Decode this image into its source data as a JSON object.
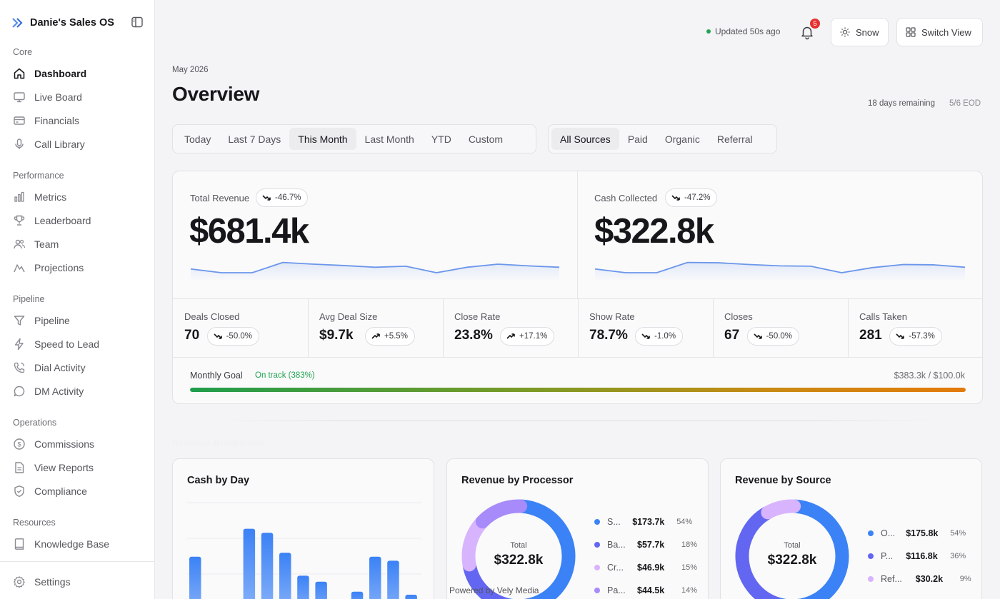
{
  "brand": {
    "name": "Danie's Sales OS",
    "logo_icon": "chevrons-right-icon",
    "collapse_icon": "sidebar-toggle-icon"
  },
  "sidebar": {
    "sections": [
      {
        "title": "Core",
        "items": [
          {
            "label": "Dashboard",
            "icon": "home-icon",
            "active": true
          },
          {
            "label": "Live Board",
            "icon": "monitor-icon"
          },
          {
            "label": "Financials",
            "icon": "credit-card-icon"
          },
          {
            "label": "Call Library",
            "icon": "microphone-icon"
          }
        ]
      },
      {
        "title": "Performance",
        "items": [
          {
            "label": "Metrics",
            "icon": "bar-chart-icon"
          },
          {
            "label": "Leaderboard",
            "icon": "trophy-icon"
          },
          {
            "label": "Team",
            "icon": "users-icon"
          },
          {
            "label": "Projections",
            "icon": "mountain-chart-icon"
          }
        ]
      },
      {
        "title": "Pipeline",
        "items": [
          {
            "label": "Pipeline",
            "icon": "funnel-icon"
          },
          {
            "label": "Speed to Lead",
            "icon": "lightning-icon"
          },
          {
            "label": "Dial Activity",
            "icon": "phone-icon"
          },
          {
            "label": "DM Activity",
            "icon": "chat-bubble-icon"
          }
        ]
      },
      {
        "title": "Operations",
        "items": [
          {
            "label": "Commissions",
            "icon": "dollar-circle-icon"
          },
          {
            "label": "View Reports",
            "icon": "document-icon"
          },
          {
            "label": "Compliance",
            "icon": "shield-check-icon"
          }
        ]
      },
      {
        "title": "Resources",
        "items": [
          {
            "label": "Knowledge Base",
            "icon": "book-icon"
          }
        ]
      }
    ],
    "settings": {
      "label": "Settings",
      "icon": "gear-icon"
    }
  },
  "topbar": {
    "status": "Updated 50s ago",
    "notifications": "5",
    "theme_label": "Snow",
    "switch_label": "Switch View"
  },
  "header": {
    "period": "May 2026",
    "title": "Overview",
    "remaining": "18 days remaining",
    "eod": "5/6 EOD"
  },
  "filters": {
    "ranges": [
      "Today",
      "Last 7 Days",
      "This Month",
      "Last Month",
      "YTD",
      "Custom"
    ],
    "active_range": "This Month",
    "sources": [
      "All Sources",
      "Paid",
      "Organic",
      "Referral"
    ],
    "active_source": "All Sources"
  },
  "kpis": {
    "revenue": {
      "label": "Total Revenue",
      "change": "-46.7%",
      "value": "$681.4k",
      "trend": [
        0.22,
        0.0,
        0.0,
        0.6,
        0.5,
        0.42,
        0.32,
        0.38,
        0.0,
        0.32,
        0.5,
        0.4,
        0.32
      ]
    },
    "cash": {
      "label": "Cash Collected",
      "change": "-47.2%",
      "value": "$322.8k",
      "trend": [
        0.22,
        0.0,
        0.0,
        0.6,
        0.58,
        0.48,
        0.4,
        0.38,
        0.0,
        0.3,
        0.48,
        0.46,
        0.32
      ]
    }
  },
  "stats": [
    {
      "label": "Deals Closed",
      "value": "70",
      "change": "-50.0%",
      "dir": "down"
    },
    {
      "label": "Avg Deal Size",
      "value": "$9.7k",
      "change": "+5.5%",
      "dir": "up"
    },
    {
      "label": "Close Rate",
      "value": "23.8%",
      "change": "+17.1%",
      "dir": "up"
    },
    {
      "label": "Show Rate",
      "value": "78.7%",
      "change": "-1.0%",
      "dir": "down"
    },
    {
      "label": "Closes",
      "value": "67",
      "change": "-50.0%",
      "dir": "down"
    },
    {
      "label": "Calls Taken",
      "value": "281",
      "change": "-57.3%",
      "dir": "down"
    }
  ],
  "goal": {
    "label": "Monthly Goal",
    "status": "On track (383%)",
    "amount": "$383.3k / $100.0k",
    "progress": 1.0
  },
  "section_title": "Revenue Breakdown",
  "cards": {
    "cash_by_day": {
      "title": "Cash by Day"
    },
    "processor": {
      "title": "Revenue by Processor",
      "total_label": "Total",
      "total_value": "$322.8k",
      "items": [
        {
          "name": "S...",
          "value": "$173.7k",
          "pct": "54%",
          "share": 54,
          "color": "#3b82f6"
        },
        {
          "name": "Ba...",
          "value": "$57.7k",
          "pct": "18%",
          "share": 18,
          "color": "#6366f1"
        },
        {
          "name": "Cr...",
          "value": "$46.9k",
          "pct": "15%",
          "share": 15,
          "color": "#d8b4fe"
        },
        {
          "name": "Pa...",
          "value": "$44.5k",
          "pct": "14%",
          "share": 14,
          "color": "#a78bfa"
        }
      ]
    },
    "source": {
      "title": "Revenue by Source",
      "total_label": "Total",
      "total_value": "$322.8k",
      "items": [
        {
          "name": "O...",
          "value": "$175.8k",
          "pct": "54%",
          "share": 54,
          "color": "#3b82f6"
        },
        {
          "name": "P...",
          "value": "$116.8k",
          "pct": "36%",
          "share": 36,
          "color": "#6366f1"
        },
        {
          "name": "Ref...",
          "value": "$30.2k",
          "pct": "9%",
          "share": 9,
          "color": "#d8b4fe"
        }
      ]
    }
  },
  "chart_data": {
    "type": "bar",
    "title": "Cash by Day",
    "values": [
      0.63,
      0.0,
      0.0,
      0.91,
      0.87,
      0.67,
      0.44,
      0.38,
      0.0,
      0.28,
      0.63,
      0.59,
      0.25
    ],
    "note_scale": "relative",
    "grid": true
  },
  "footer": {
    "powered": "Powered by Vely Media"
  }
}
